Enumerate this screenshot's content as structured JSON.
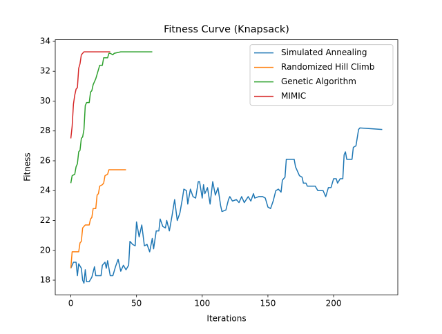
{
  "chart_data": {
    "type": "line",
    "title": "Fitness Curve (Knapsack)",
    "x_label": "Iterations",
    "y_label": "Fitness",
    "xlim": [
      -11.85,
      248.85
    ],
    "ylim": [
      17.02,
      34.11
    ],
    "xticks": [
      0,
      50,
      100,
      150,
      200
    ],
    "yticks": [
      18,
      20,
      22,
      24,
      26,
      28,
      30,
      32,
      34
    ],
    "legend": "upper right",
    "series": [
      {
        "name": "Simulated Annealing",
        "color": "#1f77b4",
        "x": [
          0,
          2,
          4,
          5,
          6,
          8,
          9,
          10,
          11,
          12,
          14,
          16,
          18,
          19,
          23,
          24,
          26,
          27,
          28,
          30,
          32,
          34,
          36,
          38,
          40,
          42,
          44,
          45,
          47,
          49,
          50,
          52,
          54,
          56,
          58,
          60,
          62,
          63,
          65,
          67,
          68,
          70,
          72,
          73,
          75,
          77,
          79,
          80,
          81,
          83,
          85,
          86,
          88,
          89,
          91,
          93,
          95,
          97,
          98,
          100,
          101,
          102,
          104,
          106,
          108,
          110,
          112,
          114,
          115,
          118,
          120,
          121,
          123,
          126,
          128,
          130,
          132,
          135,
          137,
          139,
          140,
          143,
          146,
          148,
          150,
          152,
          154,
          156,
          158,
          160,
          161,
          163,
          164,
          170,
          171,
          173,
          174,
          176,
          177,
          179,
          180,
          186,
          188,
          192,
          194,
          196,
          198,
          200,
          202,
          203,
          205,
          207,
          208,
          209,
          210,
          214,
          215,
          217,
          219,
          220,
          237
        ],
        "values": [
          18.8,
          19.2,
          19.2,
          18.3,
          19.1,
          18.8,
          18.0,
          17.8,
          18.7,
          17.9,
          17.9,
          18.2,
          18.9,
          18.3,
          18.3,
          19.0,
          19.2,
          18.8,
          19.3,
          18.3,
          18.3,
          18.9,
          19.4,
          18.6,
          19.0,
          18.7,
          19.0,
          20.6,
          20.4,
          20.3,
          21.9,
          20.9,
          21.7,
          20.3,
          20.4,
          19.9,
          20.8,
          20.1,
          21.3,
          21.3,
          22.1,
          21.6,
          21.5,
          22.0,
          21.3,
          22.3,
          23.4,
          22.7,
          22.0,
          22.5,
          23.5,
          24.1,
          24.0,
          23.1,
          24.1,
          23.6,
          23.5,
          24.6,
          24.6,
          23.5,
          24.4,
          23.8,
          24.2,
          23.1,
          24.6,
          23.7,
          24.2,
          23.0,
          22.6,
          22.7,
          23.4,
          23.6,
          23.3,
          23.4,
          23.2,
          23.6,
          23.2,
          23.6,
          23.3,
          23.8,
          23.5,
          23.6,
          23.6,
          23.5,
          22.9,
          22.8,
          23.3,
          24.0,
          24.1,
          23.9,
          24.7,
          24.9,
          26.1,
          26.1,
          25.6,
          25.2,
          25.0,
          24.9,
          24.5,
          24.5,
          24.3,
          24.3,
          24.0,
          24.0,
          23.6,
          24.2,
          24.2,
          24.8,
          24.8,
          24.5,
          24.8,
          24.8,
          26.4,
          26.6,
          26.1,
          26.1,
          26.9,
          27.0,
          28.1,
          28.2,
          28.1
        ]
      },
      {
        "name": "Randomized Hill Climb",
        "color": "#ff7f0e",
        "x": [
          0,
          1,
          6,
          7,
          8,
          9,
          10,
          11,
          14,
          15,
          16,
          17,
          19,
          20,
          21,
          22,
          24,
          25,
          26,
          28,
          29,
          42
        ],
        "values": [
          18.8,
          19.9,
          19.9,
          20.5,
          20.6,
          21.5,
          21.6,
          21.7,
          21.7,
          22.1,
          22.2,
          22.8,
          22.8,
          23.7,
          23.8,
          24.3,
          24.4,
          24.5,
          25.0,
          25.1,
          25.4,
          25.4
        ]
      },
      {
        "name": "Genetic Algorithm",
        "color": "#2ca02c",
        "x": [
          0,
          1,
          3,
          4,
          5,
          6,
          7,
          8,
          9,
          10,
          11,
          12,
          14,
          15,
          16,
          17,
          19,
          20,
          22,
          24,
          25,
          28,
          29,
          30,
          32,
          33,
          38,
          62
        ],
        "values": [
          24.5,
          25.0,
          25.1,
          25.6,
          25.8,
          26.6,
          26.7,
          27.5,
          27.6,
          28.1,
          29.7,
          29.9,
          29.9,
          30.6,
          30.7,
          31.1,
          31.5,
          31.8,
          32.4,
          32.4,
          32.9,
          32.9,
          33.2,
          33.2,
          33.1,
          33.2,
          33.3,
          33.3
        ]
      },
      {
        "name": "MIMIC",
        "color": "#d62728",
        "x": [
          0,
          1,
          2,
          3,
          4,
          5,
          6,
          7,
          8,
          9,
          10,
          30
        ],
        "values": [
          27.5,
          28.3,
          29.8,
          30.4,
          30.8,
          30.9,
          32.2,
          32.5,
          33.1,
          33.2,
          33.3,
          33.3
        ]
      }
    ]
  }
}
